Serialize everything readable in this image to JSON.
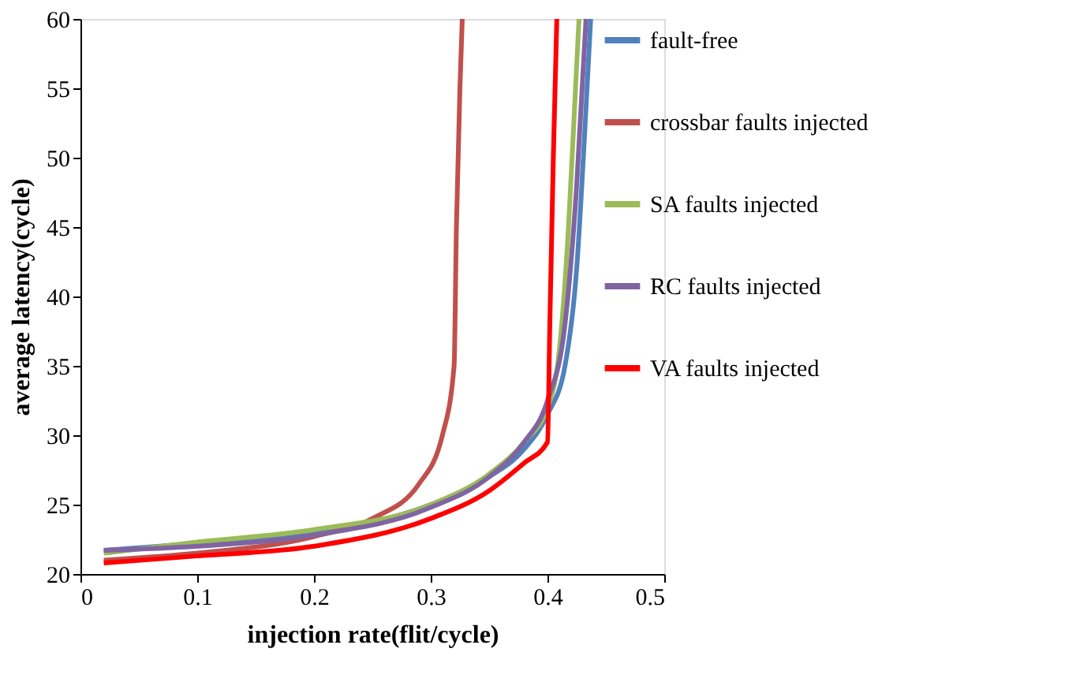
{
  "chart_data": {
    "type": "line",
    "xlabel": "injection rate(flit/cycle)",
    "ylabel": "average latency(cycle)",
    "xlim": [
      0,
      0.5
    ],
    "xticks": [
      0,
      0.1,
      0.2,
      0.3,
      0.4,
      0.5
    ],
    "ylim": [
      20,
      60
    ],
    "yticks": [
      20,
      25,
      30,
      35,
      40,
      45,
      50,
      55,
      60
    ],
    "grid": false,
    "legend": "right",
    "marker": "none",
    "line_style": "solid",
    "series": [
      {
        "name": "fault-free",
        "color": "#4f81bd",
        "x": [
          0.02,
          0.1,
          0.2,
          0.3,
          0.35,
          0.38,
          0.4,
          0.415,
          0.425,
          0.432,
          0.437
        ],
        "values": [
          21.7,
          22.2,
          23,
          25,
          27,
          29,
          31.5,
          35,
          42,
          52,
          60
        ]
      },
      {
        "name": "crossbar faults injected",
        "color": "#c0504d",
        "x": [
          0.02,
          0.1,
          0.2,
          0.25,
          0.29,
          0.31,
          0.32,
          0.322,
          0.325,
          0.327
        ],
        "values": [
          21,
          21.5,
          22.7,
          24,
          26.5,
          30,
          35,
          45,
          55,
          60
        ]
      },
      {
        "name": "SA faults injected",
        "color": "#9bbb59",
        "x": [
          0.02,
          0.1,
          0.2,
          0.3,
          0.35,
          0.38,
          0.4,
          0.41,
          0.418,
          0.424,
          0.427
        ],
        "values": [
          21.5,
          22.3,
          23.2,
          25,
          27.2,
          29.5,
          32,
          36,
          45,
          55,
          60
        ]
      },
      {
        "name": "RC faults injected",
        "color": "#8064a2",
        "x": [
          0.02,
          0.1,
          0.2,
          0.3,
          0.35,
          0.38,
          0.4,
          0.415,
          0.425,
          0.433
        ],
        "values": [
          21.7,
          22,
          22.8,
          24.8,
          27,
          29.5,
          32.5,
          38,
          48,
          60
        ]
      },
      {
        "name": "VA faults injected",
        "color": "#ff0000",
        "x": [
          0.02,
          0.1,
          0.2,
          0.3,
          0.35,
          0.38,
          0.4,
          0.402,
          0.405,
          0.408
        ],
        "values": [
          20.8,
          21.3,
          22,
          24,
          26,
          28,
          29.5,
          38,
          50,
          60
        ]
      }
    ]
  }
}
